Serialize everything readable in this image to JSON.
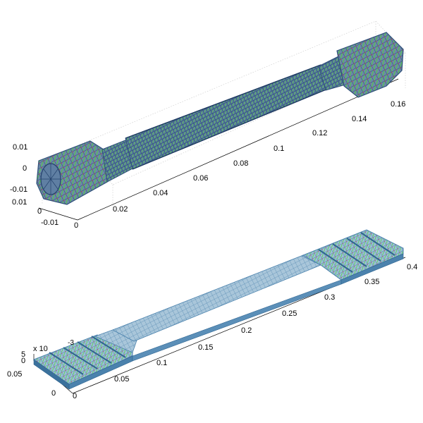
{
  "figure": {
    "top_plot": {
      "x_ticks": [
        "0",
        "0.02",
        "0.04",
        "0.06",
        "0.08",
        "0.1",
        "0.12",
        "0.14",
        "0.16"
      ],
      "y_ticks": [
        "-0.01",
        "0",
        "0.01"
      ],
      "z_ticks": [
        "-0.01",
        "0",
        "0.01"
      ]
    },
    "bottom_plot": {
      "x_ticks": [
        "0",
        "0.05",
        "0.1",
        "0.15",
        "0.2",
        "0.25",
        "0.3",
        "0.35",
        "0.4"
      ],
      "y_ticks": [
        "0",
        "0.05"
      ],
      "z_ticks": [
        "0",
        "5"
      ],
      "z_multiplier": "x 10",
      "z_exponent": "-3"
    }
  },
  "colors": {
    "mesh_blue": "#4a6fa5",
    "mesh_slate": "#5e7f9e",
    "arrow_green": "#55d23c",
    "node_red": "#d23c3c",
    "bottom_face": "#6fa6c9",
    "bottom_side": "#4b82ad"
  }
}
